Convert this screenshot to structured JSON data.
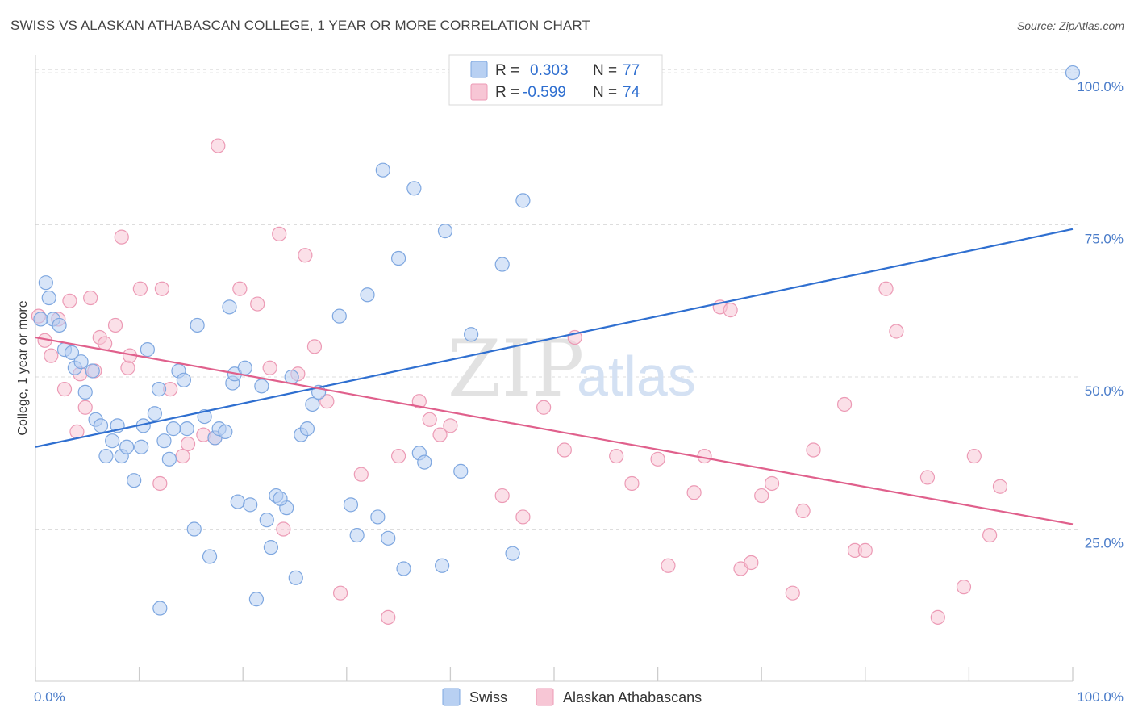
{
  "title": "SWISS VS ALASKAN ATHABASCAN COLLEGE, 1 YEAR OR MORE CORRELATION CHART",
  "source": "Source: ZipAtlas.com",
  "watermark": {
    "zip": "ZIP",
    "atlas": "atlas"
  },
  "legend": {
    "r_label": "R =",
    "n_label": "N =",
    "items": [
      {
        "r": "0.303",
        "n": "77"
      },
      {
        "r": "-0.599",
        "n": "74"
      }
    ]
  },
  "colors": {
    "swiss_fill": "#b8d0f2",
    "swiss_stroke": "#7ea7e0",
    "swiss_line": "#2f6fd0",
    "alaskan_fill": "#f7c6d5",
    "alaskan_stroke": "#ec9ab5",
    "alaskan_line": "#e0608c",
    "grid": "#dddddd",
    "tick_label": "#4a7cc9"
  },
  "chart_data": {
    "type": "scatter",
    "title": "SWISS VS ALASKAN ATHABASCAN COLLEGE, 1 YEAR OR MORE CORRELATION CHART",
    "xlabel": "",
    "ylabel": "College, 1 year or more",
    "xlim": [
      0,
      100
    ],
    "ylim": [
      0,
      102
    ],
    "x_tick_labels": [
      "0.0%",
      "100.0%"
    ],
    "y_ticks": [
      25,
      50,
      75,
      100
    ],
    "y_tick_labels": [
      "25.0%",
      "50.0%",
      "75.0%",
      "100.0%"
    ],
    "grid": "horizontal dashed",
    "legend_position": "top-center",
    "series": [
      {
        "name": "Swiss",
        "trend": {
          "x": [
            0,
            100
          ],
          "y": [
            38.5,
            74.3
          ]
        },
        "points": [
          [
            1.0,
            65.5
          ],
          [
            1.3,
            63.0
          ],
          [
            1.7,
            59.5
          ],
          [
            2.3,
            58.5
          ],
          [
            2.8,
            54.5
          ],
          [
            3.5,
            54.0
          ],
          [
            3.8,
            51.5
          ],
          [
            4.4,
            52.5
          ],
          [
            4.8,
            47.5
          ],
          [
            5.5,
            51.0
          ],
          [
            5.8,
            43.0
          ],
          [
            6.3,
            42.0
          ],
          [
            6.8,
            37.0
          ],
          [
            7.4,
            39.5
          ],
          [
            7.9,
            42.0
          ],
          [
            8.3,
            37.0
          ],
          [
            8.8,
            38.5
          ],
          [
            9.5,
            33.0
          ],
          [
            10.2,
            38.5
          ],
          [
            10.4,
            42.0
          ],
          [
            10.8,
            54.5
          ],
          [
            11.5,
            44.0
          ],
          [
            11.9,
            48.0
          ],
          [
            12.4,
            39.5
          ],
          [
            12.9,
            36.5
          ],
          [
            13.3,
            41.5
          ],
          [
            13.8,
            51.0
          ],
          [
            14.3,
            49.5
          ],
          [
            14.6,
            41.5
          ],
          [
            15.3,
            25.0
          ],
          [
            15.6,
            58.5
          ],
          [
            16.3,
            43.5
          ],
          [
            16.8,
            20.5
          ],
          [
            17.3,
            40.0
          ],
          [
            17.7,
            41.5
          ],
          [
            18.3,
            41.0
          ],
          [
            18.7,
            61.5
          ],
          [
            19.0,
            49.0
          ],
          [
            19.2,
            50.5
          ],
          [
            19.5,
            29.5
          ],
          [
            20.2,
            51.5
          ],
          [
            20.7,
            29.0
          ],
          [
            21.3,
            13.5
          ],
          [
            21.8,
            48.5
          ],
          [
            22.3,
            26.5
          ],
          [
            22.7,
            22.0
          ],
          [
            23.2,
            30.5
          ],
          [
            24.2,
            28.5
          ],
          [
            24.7,
            50.0
          ],
          [
            25.1,
            17.0
          ],
          [
            25.6,
            40.5
          ],
          [
            26.2,
            41.5
          ],
          [
            26.7,
            45.5
          ],
          [
            27.3,
            47.5
          ],
          [
            29.3,
            60.0
          ],
          [
            30.4,
            29.0
          ],
          [
            31.0,
            24.0
          ],
          [
            32.0,
            63.5
          ],
          [
            33.0,
            27.0
          ],
          [
            33.5,
            84.0
          ],
          [
            34.0,
            23.5
          ],
          [
            35.0,
            69.5
          ],
          [
            35.5,
            18.5
          ],
          [
            36.5,
            81.0
          ],
          [
            37.0,
            37.5
          ],
          [
            37.5,
            36.0
          ],
          [
            39.2,
            19.0
          ],
          [
            39.5,
            74.0
          ],
          [
            41.0,
            34.5
          ],
          [
            42.0,
            57.0
          ],
          [
            45.0,
            68.5
          ],
          [
            46.0,
            21.0
          ],
          [
            47.0,
            79.0
          ],
          [
            100.0,
            100.0
          ],
          [
            23.6,
            30.0
          ],
          [
            12.0,
            12.0
          ],
          [
            0.5,
            59.5
          ]
        ]
      },
      {
        "name": "Alaskan Athabascans",
        "trend": {
          "x": [
            0,
            100
          ],
          "y": [
            56.5,
            25.8
          ]
        },
        "points": [
          [
            0.3,
            60.0
          ],
          [
            0.9,
            56.0
          ],
          [
            1.5,
            53.5
          ],
          [
            2.2,
            59.5
          ],
          [
            2.8,
            48.0
          ],
          [
            3.3,
            62.5
          ],
          [
            4.0,
            41.0
          ],
          [
            4.3,
            50.5
          ],
          [
            4.8,
            45.0
          ],
          [
            5.3,
            63.0
          ],
          [
            5.7,
            51.0
          ],
          [
            6.2,
            56.5
          ],
          [
            6.7,
            55.5
          ],
          [
            7.7,
            58.5
          ],
          [
            8.3,
            73.0
          ],
          [
            8.9,
            51.5
          ],
          [
            9.1,
            53.5
          ],
          [
            10.1,
            64.5
          ],
          [
            12.0,
            32.5
          ],
          [
            12.2,
            64.5
          ],
          [
            13.0,
            48.0
          ],
          [
            14.2,
            37.0
          ],
          [
            14.7,
            39.0
          ],
          [
            16.2,
            40.5
          ],
          [
            17.3,
            40.0
          ],
          [
            17.6,
            88.0
          ],
          [
            19.7,
            64.5
          ],
          [
            21.4,
            62.0
          ],
          [
            22.6,
            51.5
          ],
          [
            23.5,
            73.5
          ],
          [
            23.9,
            25.0
          ],
          [
            25.3,
            50.5
          ],
          [
            26.0,
            70.0
          ],
          [
            26.9,
            55.0
          ],
          [
            28.1,
            46.0
          ],
          [
            29.4,
            14.5
          ],
          [
            31.4,
            34.0
          ],
          [
            34.0,
            10.5
          ],
          [
            35.0,
            37.0
          ],
          [
            37.0,
            46.0
          ],
          [
            38.0,
            43.0
          ],
          [
            39.0,
            40.5
          ],
          [
            40.0,
            42.0
          ],
          [
            45.0,
            30.5
          ],
          [
            47.0,
            27.0
          ],
          [
            49.0,
            45.0
          ],
          [
            51.0,
            38.0
          ],
          [
            52.0,
            56.5
          ],
          [
            56.0,
            37.0
          ],
          [
            57.5,
            32.5
          ],
          [
            60.0,
            36.5
          ],
          [
            61.0,
            19.0
          ],
          [
            63.5,
            31.0
          ],
          [
            64.5,
            37.0
          ],
          [
            66.0,
            61.5
          ],
          [
            67.0,
            61.0
          ],
          [
            68.0,
            18.5
          ],
          [
            69.0,
            19.5
          ],
          [
            70.0,
            30.5
          ],
          [
            71.0,
            32.5
          ],
          [
            73.0,
            14.5
          ],
          [
            74.0,
            28.0
          ],
          [
            75.0,
            38.0
          ],
          [
            78.0,
            45.5
          ],
          [
            79.0,
            21.5
          ],
          [
            80.0,
            21.5
          ],
          [
            82.0,
            64.5
          ],
          [
            83.0,
            57.5
          ],
          [
            86.0,
            33.5
          ],
          [
            87.0,
            10.5
          ],
          [
            89.5,
            15.5
          ],
          [
            90.5,
            37.0
          ],
          [
            92.0,
            24.0
          ],
          [
            93.0,
            32.0
          ]
        ]
      }
    ]
  },
  "bottom_legend": [
    "Swiss",
    "Alaskan Athabascans"
  ]
}
